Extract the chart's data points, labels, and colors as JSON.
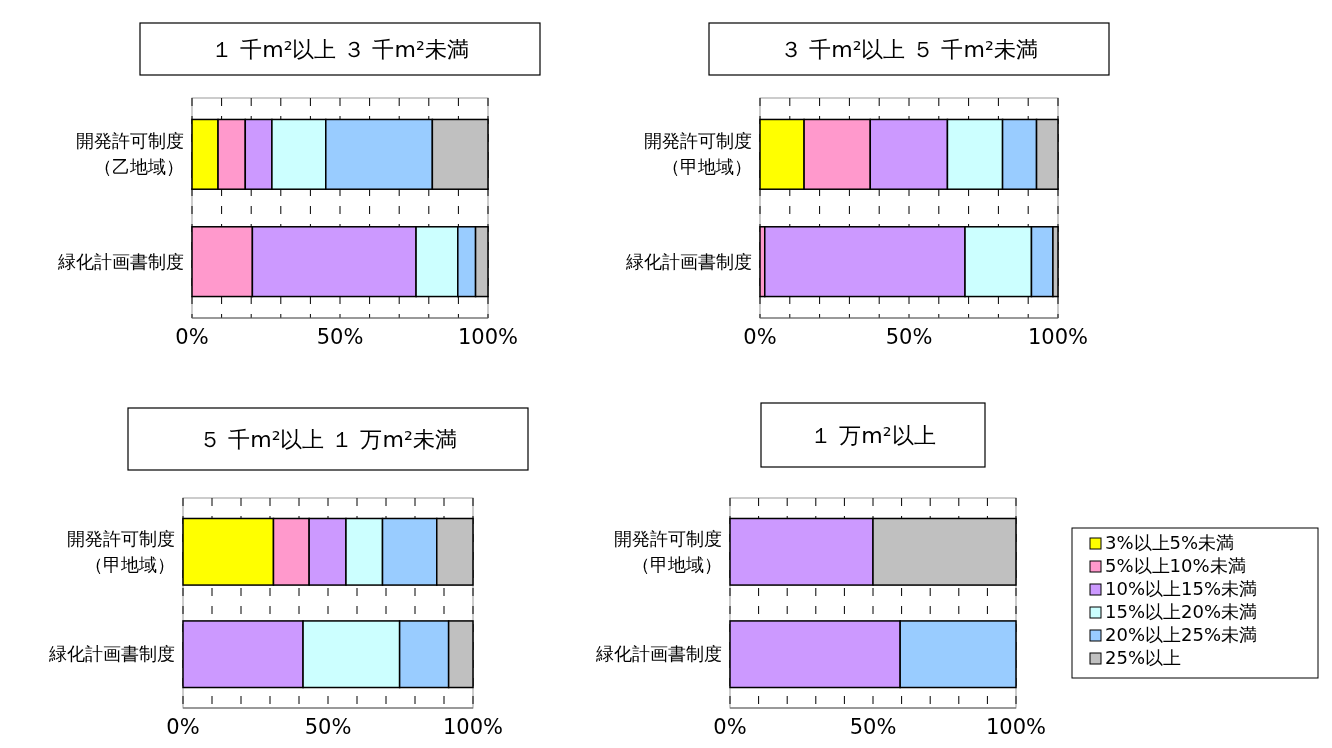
{
  "chart_data": [
    {
      "type": "bar",
      "orientation": "horizontal",
      "stacked": true,
      "title": "１ 千m²以上 ３ 千m²未満",
      "categories": [
        "開発許可制度（乙地域）",
        "緑化計画書制度"
      ],
      "xlim": [
        0,
        100
      ],
      "xticks": [
        {
          "value": 0,
          "label": "0%"
        },
        {
          "value": 10,
          "label": null
        },
        {
          "value": 20,
          "label": null
        },
        {
          "value": 30,
          "label": null
        },
        {
          "value": 40,
          "label": null
        },
        {
          "value": 50,
          "label": "50%"
        },
        {
          "value": 60,
          "label": null
        },
        {
          "value": 70,
          "label": null
        },
        {
          "value": 80,
          "label": null
        },
        {
          "value": 90,
          "label": null
        },
        {
          "value": 100,
          "label": "100%"
        }
      ],
      "grid": "x",
      "series": [
        {
          "color": "#ffff00",
          "values": [
            8.8,
            0
          ]
        },
        {
          "color": "#ff99cc",
          "values": [
            9.2,
            20.4
          ]
        },
        {
          "color": "#cc99ff",
          "values": [
            9.0,
            55.3
          ]
        },
        {
          "color": "#ccffff",
          "values": [
            18.2,
            14.1
          ]
        },
        {
          "color": "#99ccff",
          "values": [
            36.0,
            6.0
          ]
        },
        {
          "color": "#c0c0c0",
          "values": [
            18.8,
            4.2
          ]
        }
      ]
    },
    {
      "type": "bar",
      "orientation": "horizontal",
      "stacked": true,
      "title": "３ 千m²以上 ５ 千m²未満",
      "categories": [
        "開発許可制度（甲地域）",
        "緑化計画書制度"
      ],
      "xlim": [
        0,
        100
      ],
      "xticks": [
        {
          "value": 0,
          "label": "0%"
        },
        {
          "value": 10,
          "label": null
        },
        {
          "value": 20,
          "label": null
        },
        {
          "value": 30,
          "label": null
        },
        {
          "value": 40,
          "label": null
        },
        {
          "value": 50,
          "label": "50%"
        },
        {
          "value": 60,
          "label": null
        },
        {
          "value": 70,
          "label": null
        },
        {
          "value": 80,
          "label": null
        },
        {
          "value": 90,
          "label": null
        },
        {
          "value": 100,
          "label": "100%"
        }
      ],
      "grid": "x",
      "series": [
        {
          "color": "#ffff00",
          "values": [
            14.8,
            0
          ]
        },
        {
          "color": "#ff99cc",
          "values": [
            22.2,
            1.6
          ]
        },
        {
          "color": "#cc99ff",
          "values": [
            25.9,
            67.2
          ]
        },
        {
          "color": "#ccffff",
          "values": [
            18.5,
            22.3
          ]
        },
        {
          "color": "#99ccff",
          "values": [
            11.4,
            7.2
          ]
        },
        {
          "color": "#c0c0c0",
          "values": [
            7.2,
            1.7
          ]
        }
      ]
    },
    {
      "type": "bar",
      "orientation": "horizontal",
      "stacked": true,
      "title": "５ 千m²以上 １ 万m²未満",
      "categories": [
        "開発許可制度（甲地域）",
        "緑化計画書制度"
      ],
      "xlim": [
        0,
        100
      ],
      "xticks": [
        {
          "value": 0,
          "label": "0%"
        },
        {
          "value": 10,
          "label": null
        },
        {
          "value": 20,
          "label": null
        },
        {
          "value": 30,
          "label": null
        },
        {
          "value": 40,
          "label": null
        },
        {
          "value": 50,
          "label": "50%"
        },
        {
          "value": 60,
          "label": null
        },
        {
          "value": 70,
          "label": null
        },
        {
          "value": 80,
          "label": null
        },
        {
          "value": 90,
          "label": null
        },
        {
          "value": 100,
          "label": "100%"
        }
      ],
      "grid": "x",
      "series": [
        {
          "color": "#ffff00",
          "values": [
            31.2,
            0
          ]
        },
        {
          "color": "#ff99cc",
          "values": [
            12.3,
            0
          ]
        },
        {
          "color": "#cc99ff",
          "values": [
            12.7,
            41.4
          ]
        },
        {
          "color": "#ccffff",
          "values": [
            12.6,
            33.3
          ]
        },
        {
          "color": "#99ccff",
          "values": [
            18.7,
            16.9
          ]
        },
        {
          "color": "#c0c0c0",
          "values": [
            12.5,
            8.4
          ]
        }
      ]
    },
    {
      "type": "bar",
      "orientation": "horizontal",
      "stacked": true,
      "title": "１ 万m²以上",
      "categories": [
        "開発許可制度（甲地域）",
        "緑化計画書制度"
      ],
      "xlim": [
        0,
        100
      ],
      "xticks": [
        {
          "value": 0,
          "label": "0%"
        },
        {
          "value": 10,
          "label": null
        },
        {
          "value": 20,
          "label": null
        },
        {
          "value": 30,
          "label": null
        },
        {
          "value": 40,
          "label": null
        },
        {
          "value": 50,
          "label": "50%"
        },
        {
          "value": 60,
          "label": null
        },
        {
          "value": 70,
          "label": null
        },
        {
          "value": 80,
          "label": null
        },
        {
          "value": 90,
          "label": null
        },
        {
          "value": 100,
          "label": "100%"
        }
      ],
      "grid": "x",
      "legend": "right",
      "series": [
        {
          "name": "3%以上5%未満",
          "color": "#ffff00",
          "values": [
            0,
            0
          ]
        },
        {
          "name": "5%以上10%未満",
          "color": "#ff99cc",
          "values": [
            0,
            0
          ]
        },
        {
          "name": "10%以上15%未満",
          "color": "#cc99ff",
          "values": [
            50.0,
            59.5
          ]
        },
        {
          "name": "15%以上20%未満",
          "color": "#ccffff",
          "values": [
            0,
            0
          ]
        },
        {
          "name": "20%以上25%未満",
          "color": "#99ccff",
          "values": [
            0,
            40.5
          ]
        },
        {
          "name": "25%以上",
          "color": "#c0c0c0",
          "values": [
            50.0,
            0
          ]
        }
      ]
    }
  ]
}
